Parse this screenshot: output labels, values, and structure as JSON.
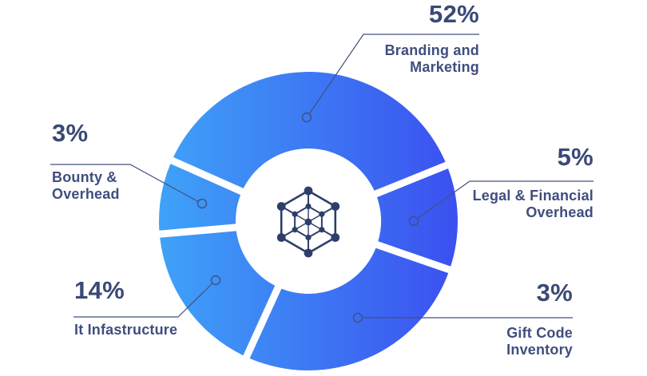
{
  "chart_data": {
    "type": "pie",
    "subtype": "donut",
    "title": "",
    "unit": "%",
    "legend_position": "callout-labels",
    "categories": [
      "Branding and Marketing",
      "Legal & Financial Overhead",
      "Gift Code Inventory",
      "It Infastructure",
      "Bounty & Overhead"
    ],
    "values": [
      52,
      5,
      3,
      14,
      3
    ],
    "segments": [
      {
        "key": "branding",
        "label": "Branding and Marketing",
        "value": 52,
        "pct_label": "52%",
        "drawn_start_deg": 156,
        "drawn_end_deg": 22
      },
      {
        "key": "legal",
        "label": "Legal & Financial Overhead",
        "value": 5,
        "pct_label": "5%",
        "drawn_start_deg": 22,
        "drawn_end_deg": -19
      },
      {
        "key": "gift",
        "label": "Gift Code Inventory",
        "value": 3,
        "pct_label": "3%",
        "drawn_start_deg": -19,
        "drawn_end_deg": -114.5
      },
      {
        "key": "it",
        "label": "It Infastructure",
        "value": 14,
        "pct_label": "14%",
        "drawn_start_deg": -114.5,
        "drawn_end_deg": -175
      },
      {
        "key": "bounty",
        "label": "Bounty & Overhead",
        "value": 3,
        "pct_label": "3%",
        "drawn_start_deg": -175,
        "drawn_end_deg": -204
      }
    ],
    "colors": {
      "gradient_start": "#3fa2f8",
      "gradient_end": "#3b50f0",
      "callout_text": "#3f4e7e",
      "leader_line": "#42517e",
      "center_icon": "#2e3e6b",
      "background": "#ffffff"
    }
  },
  "callouts": {
    "branding": {
      "pct": "52%",
      "lines": [
        "Branding and",
        "Marketing"
      ]
    },
    "bounty": {
      "pct": "3%",
      "lines": [
        "Bounty &",
        "Overhead"
      ]
    },
    "legal": {
      "pct": "5%",
      "lines": [
        "Legal & Financial",
        "Overhead"
      ]
    },
    "it": {
      "pct": "14%",
      "lines": [
        "It Infastructure"
      ]
    },
    "gift": {
      "pct": "3%",
      "lines": [
        "Gift Code",
        "Inventory"
      ]
    }
  }
}
